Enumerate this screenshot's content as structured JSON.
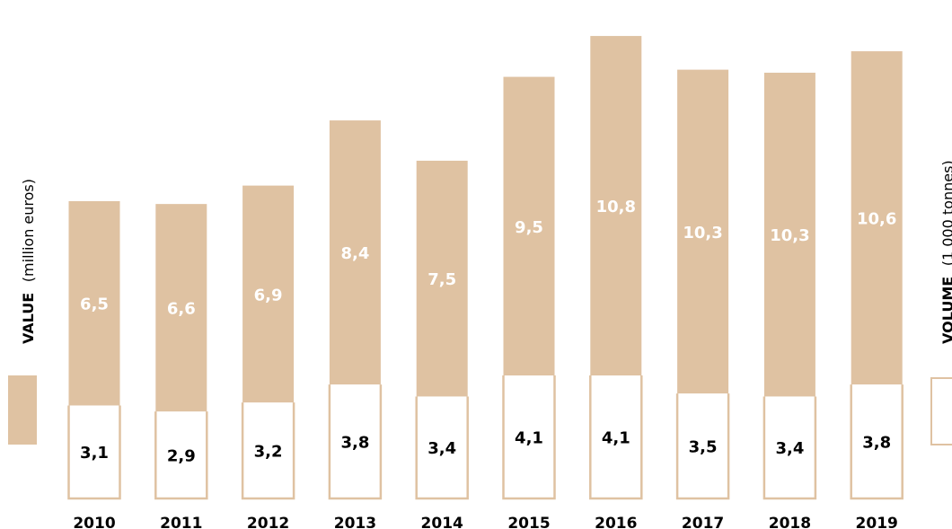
{
  "chart_data": {
    "type": "bar",
    "categories": [
      "2010",
      "2011",
      "2012",
      "2013",
      "2014",
      "2015",
      "2016",
      "2017",
      "2018",
      "2019"
    ],
    "series": [
      {
        "name": "VALUE (million euros)",
        "values": [
          6.5,
          6.6,
          6.9,
          8.4,
          7.5,
          9.5,
          10.8,
          10.3,
          10.3,
          10.6
        ],
        "labels": [
          "6,5",
          "6,6",
          "6,9",
          "8,4",
          "7,5",
          "9,5",
          "10,8",
          "10,3",
          "10,3",
          "10,6"
        ],
        "color": "#dfc2a2"
      },
      {
        "name": "VOLUME (1 000 tonnes)",
        "values": [
          3.1,
          2.9,
          3.2,
          3.8,
          3.4,
          4.1,
          4.1,
          3.5,
          3.4,
          3.8
        ],
        "labels": [
          "3,1",
          "2,9",
          "3,2",
          "3,8",
          "3,4",
          "4,1",
          "4,1",
          "3,5",
          "3,4",
          "3,8"
        ],
        "color": "#ffffff",
        "outline": "#dfc2a2"
      }
    ],
    "legend": {
      "value_title": "VALUE",
      "value_unit": "(million euros)",
      "volume_title": "VOLUME",
      "volume_unit": "(1 000 tonnes)"
    }
  }
}
